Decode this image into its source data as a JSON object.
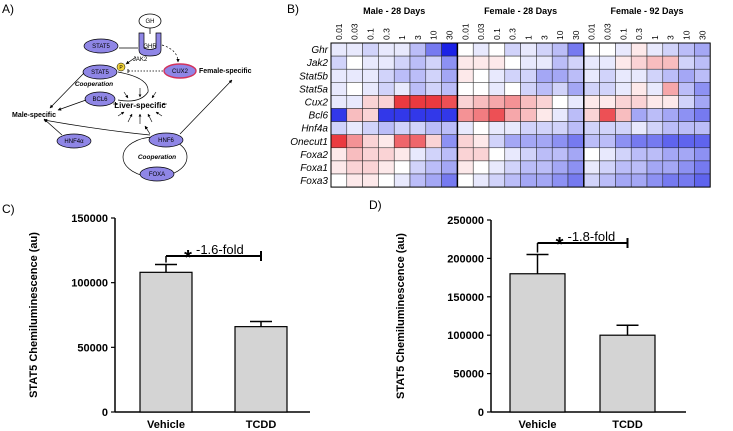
{
  "panels": {
    "a": "A)",
    "b": "B)",
    "c": "C)",
    "d": "D)"
  },
  "diagram": {
    "nodes": {
      "gh": "GH",
      "ghr": "GHR",
      "jak2": "JAK2",
      "stat5_top": "STAT5",
      "stat5": "STAT5",
      "p": "P",
      "cux2": "CUX2",
      "bcl6": "BCL6",
      "hnf4a": "HNF4α",
      "hnf6": "HNF6",
      "foxa": "FOXA"
    },
    "labels": {
      "cooperation_top": "Cooperation",
      "cooperation_bottom": "Cooperation",
      "male_specific": "Male-specific",
      "female_specific": "Female-specific",
      "liver_specific": "Liver-specific"
    }
  },
  "heatmap": {
    "groups": [
      "Male - 28 Days",
      "Female - 28 Days",
      "Female - 92 Days"
    ],
    "doses": [
      "0.01",
      "0.03",
      "0.1",
      "0.3",
      "1",
      "3",
      "10",
      "30"
    ],
    "genes": [
      "Ghr",
      "Jak2",
      "Stat5b",
      "Stat5a",
      "Cux2",
      "Bcl6",
      "Hnf4a",
      "Onecut1",
      "Foxa2",
      "Foxa1",
      "Foxa3"
    ],
    "values": [
      [
        -0.1,
        -0.1,
        -0.2,
        -0.1,
        -0.1,
        -0.3,
        -0.6,
        -1.0,
        0,
        -0.1,
        0,
        -0.2,
        -0.1,
        -0.2,
        -0.3,
        -0.6,
        0,
        0,
        -0.1,
        0.1,
        -0.1,
        -0.2,
        -0.3,
        -0.4
      ],
      [
        -0.2,
        0,
        -0.1,
        -0.1,
        -0.2,
        -0.3,
        -0.2,
        -0.5,
        0.1,
        0.1,
        0.1,
        0,
        -0.1,
        -0.1,
        -0.3,
        -0.2,
        -0.1,
        -0.1,
        0.1,
        0.2,
        0.3,
        0.3,
        -0.2,
        -0.3
      ],
      [
        -0.1,
        -0.1,
        -0.1,
        -0.2,
        -0.3,
        -0.3,
        -0.2,
        -0.4,
        0.1,
        0,
        -0.1,
        -0.2,
        -0.2,
        -0.4,
        -0.4,
        -0.3,
        -0.1,
        -0.2,
        -0.1,
        -0.1,
        -0.2,
        -0.3,
        -0.4,
        -0.3
      ],
      [
        -0.1,
        0,
        -0.1,
        -0.2,
        -0.1,
        -0.3,
        -0.2,
        -0.3,
        0,
        0,
        -0.1,
        0,
        -0.2,
        -0.3,
        -0.2,
        -0.4,
        -0.2,
        -0.2,
        -0.1,
        0.1,
        -0.1,
        0.4,
        -0.3,
        -0.5
      ],
      [
        -0.1,
        -0.1,
        0.2,
        0.2,
        0.9,
        0.9,
        0.9,
        0.8,
        0.2,
        0.3,
        0.4,
        0.5,
        0.3,
        0.2,
        0,
        -0.1,
        0.1,
        0.1,
        0.2,
        0.2,
        0.1,
        0.1,
        -0.2,
        -0.4
      ],
      [
        -0.9,
        0.3,
        0.2,
        -0.9,
        -0.9,
        -0.9,
        -0.9,
        -0.9,
        0.5,
        0.6,
        0.8,
        0.4,
        0.3,
        0.1,
        -0.1,
        -0.3,
        0.2,
        0.8,
        0.3,
        -0.4,
        -0.3,
        -0.4,
        -0.5,
        -0.6
      ],
      [
        -0.2,
        -0.1,
        -0.2,
        -0.3,
        -0.2,
        -0.2,
        -0.3,
        -0.3,
        -0.1,
        0,
        -0.1,
        -0.1,
        -0.2,
        -0.2,
        -0.2,
        -0.3,
        -0.2,
        -0.2,
        -0.2,
        -0.1,
        -0.2,
        -0.3,
        -0.3,
        -0.3
      ],
      [
        0.9,
        0.5,
        0.2,
        0.1,
        0.7,
        0.7,
        0.2,
        -0.5,
        0.2,
        0.1,
        -0.2,
        -0.4,
        -0.4,
        -0.4,
        -0.5,
        -0.6,
        -0.3,
        -0.3,
        -0.5,
        -0.6,
        -0.6,
        -0.7,
        -0.7,
        -0.7
      ],
      [
        0.1,
        0.3,
        0.2,
        0.2,
        0.1,
        -0.1,
        -0.2,
        -0.3,
        0.2,
        0.2,
        0,
        -0.1,
        -0.2,
        -0.3,
        -0.3,
        -0.4,
        0,
        -0.1,
        -0.2,
        -0.3,
        -0.3,
        -0.4,
        -0.4,
        -0.5
      ],
      [
        0.1,
        0.2,
        0.2,
        0.1,
        0,
        -0.2,
        -0.3,
        -0.4,
        0.1,
        0,
        -0.1,
        -0.2,
        -0.3,
        -0.3,
        -0.4,
        -0.5,
        -0.1,
        -0.2,
        -0.3,
        -0.3,
        -0.4,
        -0.4,
        -0.5,
        -0.6
      ],
      [
        0,
        0.1,
        0.1,
        0,
        -0.1,
        -0.3,
        -0.4,
        -0.6,
        0,
        -0.1,
        -0.2,
        -0.3,
        -0.4,
        -0.4,
        -0.5,
        -0.6,
        -0.2,
        -0.3,
        -0.4,
        -0.4,
        -0.5,
        -0.6,
        -0.6,
        -0.7
      ]
    ]
  },
  "chart_data": [
    {
      "type": "bar",
      "panel": "C",
      "categories": [
        "Vehicle",
        "TCDD"
      ],
      "values": [
        108000,
        66000
      ],
      "errors": [
        6000,
        4000
      ],
      "ylabel": "STAT5 Chemiluminescence (au)",
      "ylim": [
        0,
        150000
      ],
      "ticks": [
        "0",
        "50000",
        "100000",
        "150000"
      ],
      "tick_values": [
        0,
        50000,
        100000,
        150000
      ],
      "annotation": {
        "star": "*",
        "text": "-1.6-fold"
      }
    },
    {
      "type": "bar",
      "panel": "D",
      "categories": [
        "Vehicle",
        "TCDD"
      ],
      "values": [
        180000,
        100000
      ],
      "errors": [
        25000,
        13000
      ],
      "ylabel": "STAT5 Chemiluminescence (au)",
      "ylim": [
        0,
        250000
      ],
      "ticks": [
        "0",
        "50000",
        "100000",
        "150000",
        "200000",
        "250000"
      ],
      "tick_values": [
        0,
        50000,
        100000,
        150000,
        200000,
        250000
      ],
      "annotation": {
        "star": "*",
        "text": "-1.8-fold"
      }
    }
  ],
  "colors": {
    "node": "#8f86e6",
    "bar": "#d4d4d4",
    "heat_pos": "#e8242b",
    "heat_neg": "#1b22e6"
  }
}
